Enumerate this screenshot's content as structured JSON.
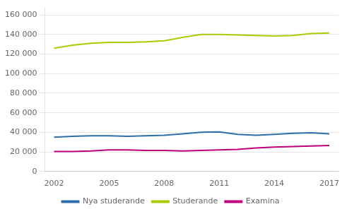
{
  "chart_data": {
    "type": "line",
    "x": [
      2002,
      2003,
      2004,
      2005,
      2006,
      2007,
      2008,
      2009,
      2010,
      2011,
      2012,
      2013,
      2014,
      2015,
      2016,
      2017
    ],
    "series": [
      {
        "name": "Nya studerande",
        "color": "#2E6EA8",
        "values": [
          35000,
          36000,
          36500,
          36500,
          36000,
          36500,
          37000,
          38500,
          40000,
          40500,
          38000,
          37000,
          38000,
          39000,
          39500,
          38500
        ]
      },
      {
        "name": "Studerande",
        "color": "#AACC00",
        "values": [
          126000,
          129000,
          131000,
          132000,
          132000,
          132500,
          133500,
          137000,
          140000,
          140000,
          139500,
          139000,
          138500,
          139000,
          141000,
          141500
        ]
      },
      {
        "name": "Examina",
        "color": "#C0007C",
        "values": [
          20500,
          20500,
          21000,
          22000,
          22000,
          21500,
          21500,
          21000,
          21500,
          22000,
          22500,
          24000,
          25000,
          25500,
          26000,
          26500
        ]
      }
    ],
    "xlim": [
      2001.5,
      2017.5
    ],
    "xticks": [
      2002,
      2005,
      2008,
      2011,
      2014,
      2017
    ],
    "ylim": [
      0,
      168000
    ],
    "yticks": [
      0,
      {
        "value": 20000,
        "label": "20 000"
      },
      {
        "value": 40000,
        "label": "40 000"
      },
      {
        "value": 60000,
        "label": "60 000"
      },
      {
        "value": 80000,
        "label": "80 000"
      },
      {
        "value": 100000,
        "label": "100 000"
      },
      {
        "value": 120000,
        "label": "120 000"
      },
      {
        "value": 140000,
        "label": "140 000"
      },
      {
        "value": 160000,
        "label": "160 000"
      }
    ],
    "grid": "y",
    "legend": "bottom"
  }
}
